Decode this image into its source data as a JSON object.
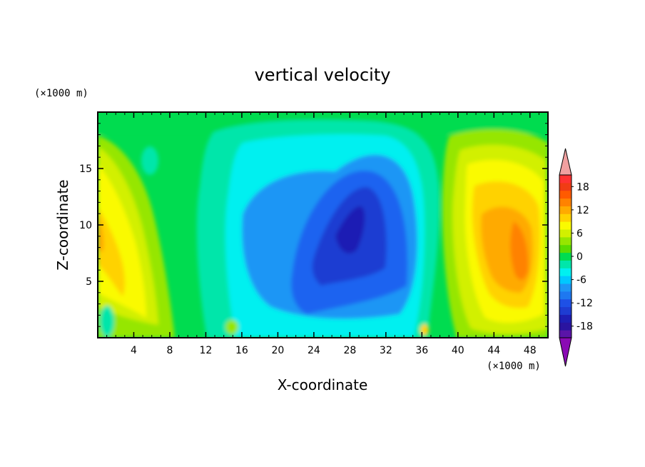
{
  "chart_data": {
    "type": "heatmap",
    "title": "vertical velocity",
    "xlabel": "X-coordinate",
    "ylabel": "Z-coordinate",
    "x_units": "(×1000 m)",
    "y_units": "(×1000 m)",
    "xlim": [
      0,
      50
    ],
    "ylim": [
      0,
      20
    ],
    "x_ticks": [
      4,
      8,
      12,
      16,
      20,
      24,
      28,
      32,
      36,
      40,
      44,
      48
    ],
    "y_ticks": [
      5,
      10,
      15
    ],
    "colorbar": {
      "min": -21,
      "max": 21,
      "step": 3,
      "labels": [
        18,
        12,
        6,
        0,
        -6,
        -12,
        -18
      ],
      "extend": "both",
      "colors": [
        "#8a0ab4",
        "#5a14a8",
        "#2a14a0",
        "#1e1eb4",
        "#1e3cd2",
        "#1e64f0",
        "#1e96f5",
        "#00c8ff",
        "#00f0f0",
        "#00e6aa",
        "#00dc50",
        "#5adc00",
        "#96e600",
        "#d2f000",
        "#fafa00",
        "#ffd200",
        "#ffaa00",
        "#ff8200",
        "#ff5a00",
        "#f03c14",
        "#ff3232",
        "#f0a0a0"
      ]
    },
    "features": [
      {
        "name": "left updraft",
        "x": 3.5,
        "z": 8,
        "value": 9
      },
      {
        "name": "central downdraft",
        "x": 27,
        "z": 8.5,
        "value": -13
      },
      {
        "name": "right updraft",
        "x": 46,
        "z": 7.5,
        "value": 14
      }
    ]
  }
}
